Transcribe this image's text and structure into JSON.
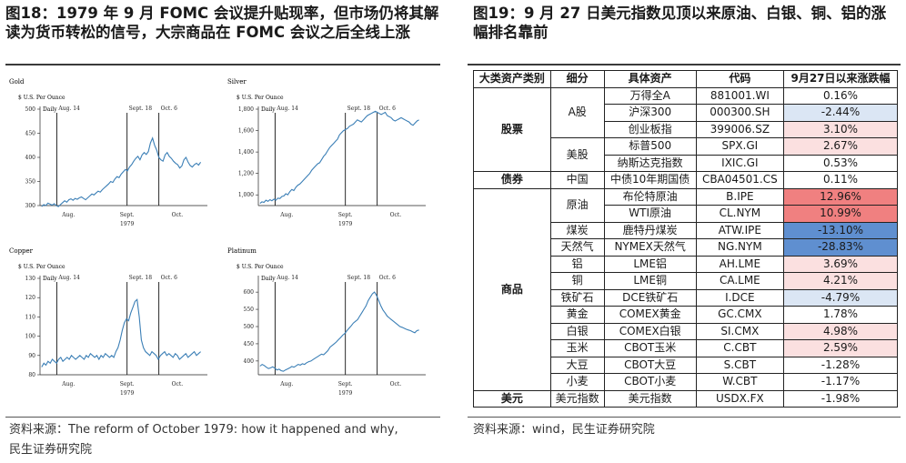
{
  "left_panel": {
    "title": "图18：1979 年 9 月 FOMC 会议提升贴现率，但市场仍将其解读为货币转松的信号，大宗商品在 FOMC 会议之后全线上涨",
    "source_line1": "资料来源：The reform of October 1979: how it happened and why,",
    "source_line2": "民生证券研究院"
  },
  "right_panel": {
    "title": "图19：9 月 27 日美元指数见顶以来原油、白银、铜、铝的涨幅排名靠前",
    "source": "资料来源：wind，民生证券研究院"
  },
  "chart_data": [
    {
      "type": "line",
      "name": "Gold",
      "unit": "$ U.S. Per Ounce",
      "frequency": "Daily",
      "ylim": [
        300,
        500
      ],
      "yticks": [
        "300",
        "350",
        "400",
        "450",
        "500"
      ],
      "xticks": [
        "Aug.",
        "Sept.",
        "Oct."
      ],
      "xsub": "1979",
      "events": [
        "Aug. 14",
        "Sept. 18",
        "Oct. 6"
      ],
      "values": [
        298,
        302,
        300,
        305,
        303,
        301,
        304,
        300,
        298,
        302,
        306,
        310,
        307,
        312,
        314,
        311,
        315,
        313,
        316,
        318,
        315,
        312,
        316,
        320,
        324,
        322,
        326,
        330,
        328,
        333,
        337,
        341,
        345,
        350,
        348,
        355,
        360,
        358,
        365,
        370,
        375,
        372,
        380,
        385,
        392,
        398,
        402,
        395,
        405,
        410,
        406,
        412,
        430,
        440,
        425,
        415,
        400,
        395,
        392,
        405,
        410,
        402,
        398,
        392,
        388,
        385,
        378,
        382,
        395,
        400,
        390,
        383,
        380,
        385,
        388,
        384,
        390
      ]
    },
    {
      "type": "line",
      "name": "Silver",
      "unit": "$ U.S. Per Ounce",
      "frequency": "Daily",
      "ylim": [
        900,
        1800
      ],
      "yticks": [
        "1,000",
        "1,200",
        "1,400",
        "1,600",
        "1,800"
      ],
      "xticks": [
        "Aug.",
        "Sept.",
        "Oct."
      ],
      "xsub": "1979",
      "events": [
        "Aug. 14",
        "Sept. 18",
        "Oct. 6"
      ],
      "values": [
        920,
        935,
        930,
        950,
        940,
        955,
        945,
        960,
        950,
        970,
        965,
        985,
        990,
        1010,
        1000,
        1030,
        1050,
        1040,
        1070,
        1090,
        1100,
        1120,
        1140,
        1160,
        1180,
        1200,
        1230,
        1250,
        1270,
        1290,
        1300,
        1330,
        1360,
        1380,
        1410,
        1440,
        1460,
        1480,
        1500,
        1520,
        1560,
        1580,
        1600,
        1610,
        1620,
        1640,
        1650,
        1660,
        1680,
        1700,
        1690,
        1680,
        1700,
        1720,
        1740,
        1750,
        1760,
        1770,
        1780,
        1770,
        1760,
        1750,
        1760,
        1770,
        1740,
        1730,
        1720,
        1700,
        1690,
        1700,
        1710,
        1720,
        1710,
        1700,
        1690,
        1680,
        1660,
        1650,
        1670,
        1690,
        1700
      ]
    },
    {
      "type": "line",
      "name": "Copper",
      "unit": "$ U.S. Per Ounce",
      "frequency": "Daily",
      "ylim": [
        80,
        130
      ],
      "yticks": [
        "80",
        "90",
        "100",
        "110",
        "120",
        "130"
      ],
      "xticks": [
        "Aug.",
        "Sept.",
        "Oct."
      ],
      "xsub": "1979",
      "events": [
        "Aug. 14",
        "Sept. 18",
        "Oct. 6"
      ],
      "values": [
        84,
        86,
        85,
        87,
        86,
        88,
        87,
        86,
        88,
        89,
        87,
        88,
        89,
        88,
        90,
        89,
        88,
        89,
        90,
        89,
        88,
        90,
        89,
        91,
        90,
        89,
        90,
        88,
        90,
        89,
        91,
        90,
        89,
        90,
        89,
        92,
        94,
        98,
        103,
        107,
        109,
        108,
        112,
        115,
        118,
        119,
        110,
        98,
        94,
        92,
        91,
        90,
        92,
        91,
        90,
        88,
        90,
        91,
        92,
        90,
        91,
        90,
        89,
        91,
        90,
        88,
        89,
        90,
        91,
        89,
        90,
        91,
        92,
        90,
        91,
        92
      ]
    },
    {
      "type": "line",
      "name": "Platinum",
      "unit": "$ U.S. Per Ounce",
      "frequency": "Daily",
      "ylim": [
        360,
        640
      ],
      "yticks": [
        "400",
        "450",
        "500",
        "550",
        "600"
      ],
      "xticks": [
        "Aug.",
        "Sept.",
        "Oct."
      ],
      "xsub": "1979",
      "events": [
        "Aug. 14",
        "Sept. 18",
        "Oct. 6"
      ],
      "values": [
        385,
        390,
        387,
        382,
        378,
        380,
        383,
        379,
        374,
        376,
        372,
        370,
        374,
        377,
        380,
        384,
        382,
        386,
        390,
        388,
        392,
        390,
        395,
        398,
        400,
        404,
        408,
        412,
        416,
        420,
        418,
        424,
        430,
        440,
        445,
        450,
        455,
        462,
        468,
        475,
        480,
        488,
        495,
        502,
        510,
        515,
        520,
        530,
        540,
        550,
        560,
        575,
        585,
        595,
        600,
        590,
        575,
        560,
        548,
        540,
        530,
        525,
        520,
        515,
        510,
        505,
        500,
        498,
        495,
        492,
        490,
        488,
        485,
        482,
        488,
        490
      ]
    },
    {
      "type": "table",
      "columns": [
        "大类资产类别",
        "细分",
        "具体资产",
        "代码",
        "9月27日以来涨跌幅"
      ],
      "rows": [
        [
          "股票",
          "A股",
          "万得全A",
          "881001.WI",
          "0.16%"
        ],
        [
          "股票",
          "A股",
          "沪深300",
          "000300.SH",
          "-2.44%"
        ],
        [
          "股票",
          "A股",
          "创业板指",
          "399006.SZ",
          "3.10%"
        ],
        [
          "股票",
          "美股",
          "标普500",
          "SPX.GI",
          "2.67%"
        ],
        [
          "股票",
          "美股",
          "纳斯达克指数",
          "IXIC.GI",
          "0.53%"
        ],
        [
          "债券",
          "中国",
          "中债10年期国债",
          "CBA04501.CS",
          "0.11%"
        ],
        [
          "商品",
          "原油",
          "布伦特原油",
          "B.IPE",
          "12.96%"
        ],
        [
          "商品",
          "原油",
          "WTI原油",
          "CL.NYM",
          "10.99%"
        ],
        [
          "商品",
          "煤炭",
          "鹿特丹煤炭",
          "ATW.IPE",
          "-13.10%"
        ],
        [
          "商品",
          "天然气",
          "NYMEX天然气",
          "NG.NYM",
          "-28.83%"
        ],
        [
          "商品",
          "铝",
          "LME铝",
          "AH.LME",
          "3.69%"
        ],
        [
          "商品",
          "铜",
          "LME铜",
          "CA.LME",
          "4.21%"
        ],
        [
          "商品",
          "铁矿石",
          "DCE铁矿石",
          "I.DCE",
          "-4.79%"
        ],
        [
          "商品",
          "黄金",
          "COMEX黄金",
          "GC.CMX",
          "1.78%"
        ],
        [
          "商品",
          "白银",
          "COMEX白银",
          "SI.CMX",
          "4.98%"
        ],
        [
          "商品",
          "玉米",
          "CBOT玉米",
          "C.CBT",
          "2.59%"
        ],
        [
          "商品",
          "大豆",
          "CBOT大豆",
          "S.CBT",
          "-1.28%"
        ],
        [
          "商品",
          "小麦",
          "CBOT小麦",
          "W.CBT",
          "-1.17%"
        ],
        [
          "美元",
          "美元指数",
          "美元指数",
          "USDX.FX",
          "-1.98%"
        ]
      ],
      "heat_colors": {
        "pos_strong": "#f08080",
        "pos_weak": "#fbe0e0",
        "neg_weak": "#dbe6f4",
        "neg_strong": "#5f8fd0"
      }
    }
  ]
}
